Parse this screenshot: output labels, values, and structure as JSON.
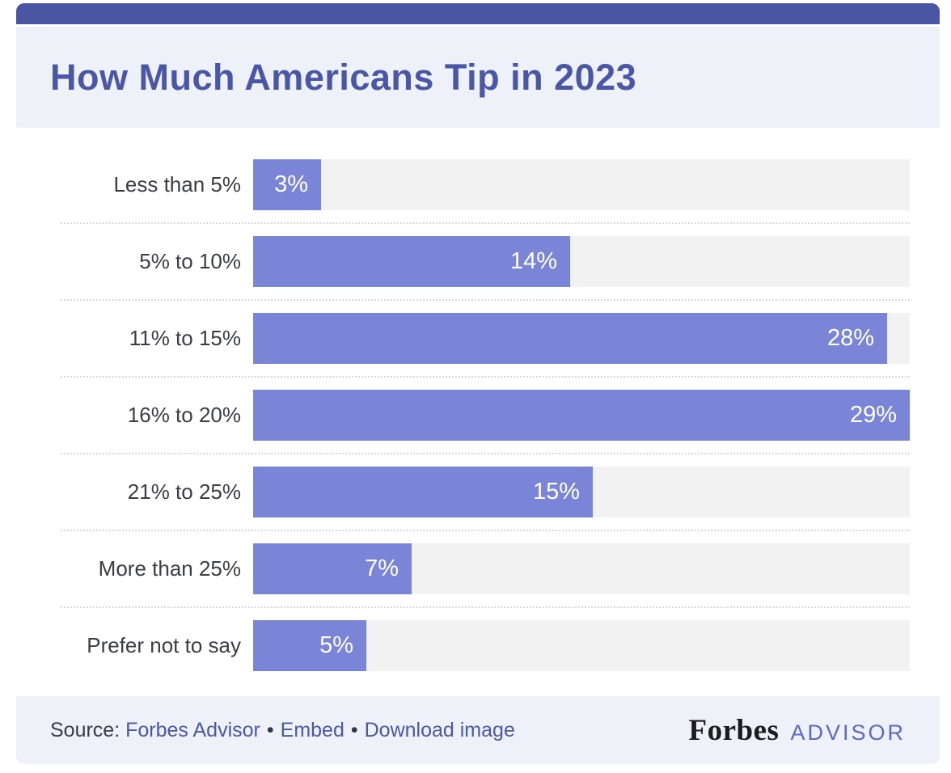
{
  "header": {
    "title": "How Much Americans Tip in 2023",
    "title_color": "#4a57a6",
    "strip_color": "#4a55a3",
    "panel_color": "#eef1f8"
  },
  "chart_data": {
    "type": "bar",
    "orientation": "horizontal",
    "title": "How Much Americans Tip in 2023",
    "categories": [
      "Less than 5%",
      "5% to 10%",
      "11% to 15%",
      "16% to 20%",
      "21% to 25%",
      "More than 25%",
      "Prefer not to say"
    ],
    "values": [
      3,
      14,
      28,
      29,
      15,
      7,
      5
    ],
    "value_labels": [
      "3%",
      "14%",
      "28%",
      "29%",
      "15%",
      "7%",
      "5%"
    ],
    "xlabel": "",
    "ylabel": "",
    "xlim": [
      0,
      29
    ],
    "grid": "dotted row separators",
    "legend": "none",
    "bar_color": "#7b85d8",
    "track_color": "#f2f2f3",
    "category_label_color": "#3b3c46",
    "value_label_color": "#ffffff"
  },
  "footer": {
    "source_label": "Source:",
    "links": [
      {
        "label": "Forbes Advisor"
      },
      {
        "label": "Embed"
      },
      {
        "label": "Download image"
      }
    ],
    "separator": "•",
    "link_color": "#4a5aa0",
    "brand": {
      "forbes": "Forbes",
      "advisor": "ADVISOR"
    }
  }
}
